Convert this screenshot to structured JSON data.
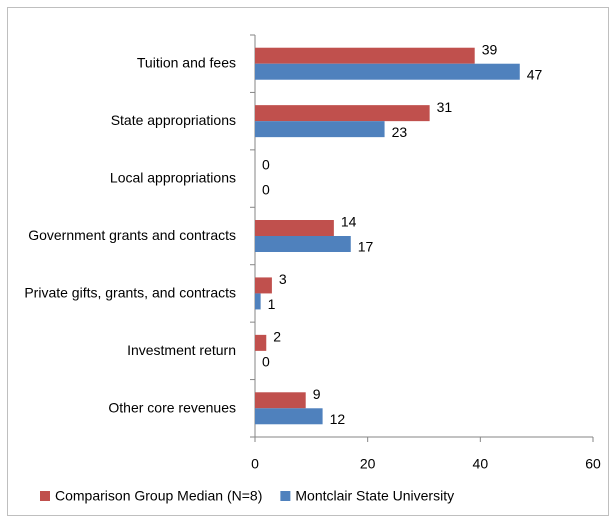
{
  "chart_data": {
    "type": "hbar",
    "categories": [
      "Tuition and fees",
      "State appropriations",
      "Local appropriations",
      "Government grants and contracts",
      "Private gifts, grants, and contracts",
      "Investment return",
      "Other core revenues"
    ],
    "series": [
      {
        "name": "Comparison Group Median (N=8)",
        "color": "#c0504d",
        "values": [
          39,
          31,
          0,
          14,
          3,
          2,
          9
        ]
      },
      {
        "name": "Montclair State University",
        "color": "#4f81bd",
        "values": [
          47,
          23,
          0,
          17,
          1,
          0,
          12
        ]
      }
    ],
    "xlim": [
      0,
      60
    ],
    "xticks": [
      0,
      20,
      40,
      60
    ],
    "grid": false,
    "legend": "bottom"
  }
}
